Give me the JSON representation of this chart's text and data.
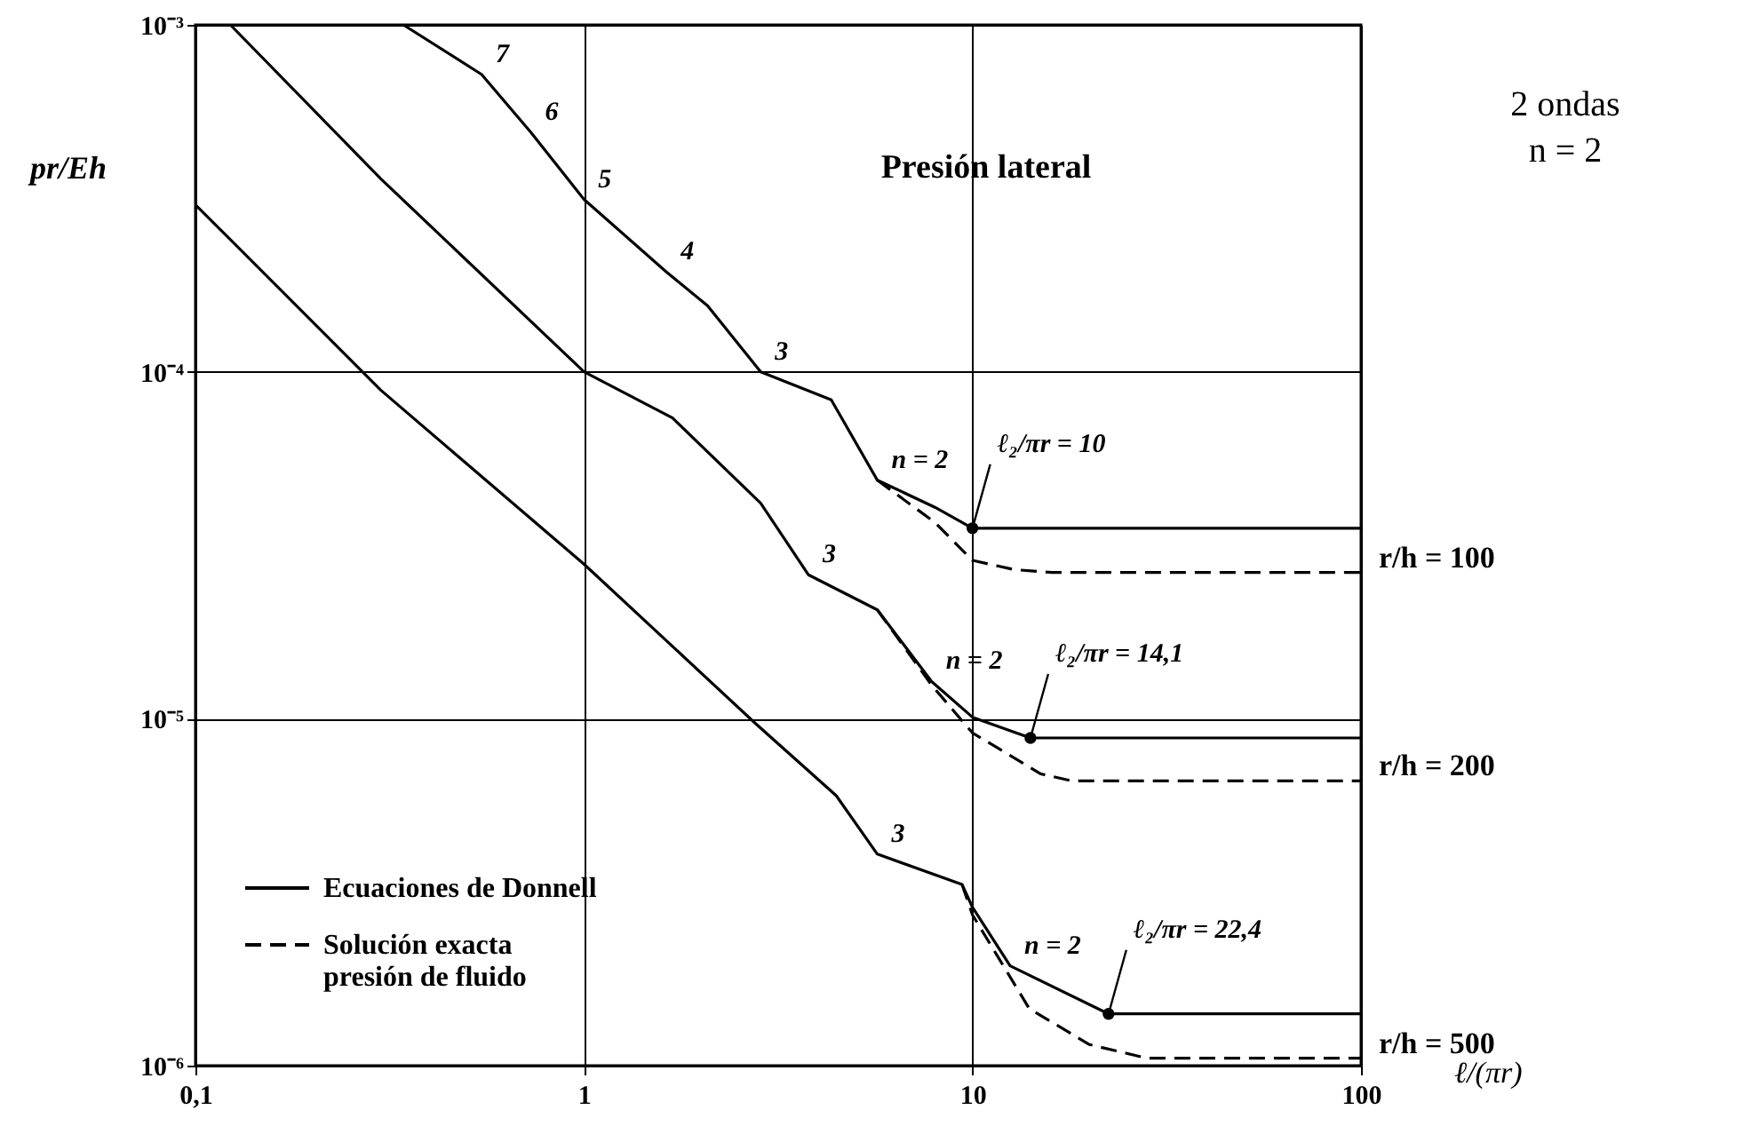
{
  "chart_data": {
    "type": "line",
    "title": "Presión lateral",
    "xlabel": "ℓ/(πr)",
    "ylabel": "pr/Eh",
    "log": "xy",
    "grid": true,
    "legend": "bottom left",
    "xlim": [
      0.1,
      100
    ],
    "xticks": [
      {
        "value": 0.1,
        "label": "0,1"
      },
      1,
      10,
      100
    ],
    "ylim": [
      1e-06,
      0.001
    ],
    "yticks": [
      {
        "value": 1e-06,
        "label": "10⁻⁶"
      },
      {
        "value": 1e-05,
        "label": "10⁻⁵"
      },
      {
        "value": 0.0001,
        "label": "10⁻⁴"
      },
      {
        "value": 0.001,
        "label": "10⁻³"
      }
    ],
    "series": [
      {
        "name": "Ecuaciones de Donnell",
        "color": "#000000",
        "line_style": "solid",
        "x": [
          0.343,
          0.545,
          0.73,
          1,
          1.63,
          2.08,
          2.85,
          4.33,
          5.69,
          8.0,
          10,
          100
        ],
        "values": [
          0.001,
          0.00072,
          0.00049,
          0.000314,
          0.000194,
          0.000155,
          0.0001,
          8.3e-05,
          4.87e-05,
          4.07e-05,
          3.54e-05,
          3.54e-05
        ]
      },
      {
        "name": "Solución exacta\npresión de fluido",
        "color": "#000000",
        "line_style": "dashed",
        "x": [
          5.69,
          8.0,
          10,
          12.8,
          16,
          100
        ],
        "values": [
          4.87e-05,
          3.68e-05,
          2.86e-05,
          2.69e-05,
          2.64e-05,
          2.64e-05
        ]
      },
      {
        "color": "#000000",
        "line_style": "solid",
        "x": [
          0.123,
          0.3,
          1,
          1.69,
          2.85,
          3.78,
          5.69,
          7.85,
          10,
          14.1,
          100
        ],
        "values": [
          0.001,
          0.00036,
          0.0001,
          7.36e-05,
          4.18e-05,
          2.6e-05,
          2.06e-05,
          1.28e-05,
          1.01e-05,
          8.8e-06,
          8.8e-06
        ]
      },
      {
        "color": "#000000",
        "line_style": "dashed",
        "x": [
          5.69,
          7.85,
          10,
          15,
          18,
          100
        ],
        "values": [
          2.06e-05,
          1.25e-05,
          9.1e-06,
          6.93e-06,
          6.62e-06,
          6.62e-06
        ]
      },
      {
        "color": "#000000",
        "line_style": "solid",
        "x": [
          0.1,
          0.3,
          1,
          2.76,
          4.46,
          5.69,
          9.4,
          10,
          12.5,
          22.4,
          100
        ],
        "values": [
          0.000303,
          8.85e-05,
          2.79e-05,
          9.7e-06,
          6e-06,
          4.07e-06,
          3.33e-06,
          2.86e-06,
          1.94e-06,
          1.41e-06,
          1.41e-06
        ]
      },
      {
        "color": "#000000",
        "line_style": "dashed",
        "x": [
          9.4,
          10,
          14,
          20,
          28.2,
          100
        ],
        "values": [
          3.33e-06,
          2.72e-06,
          1.46e-06,
          1.15e-06,
          1.05e-06,
          1.05e-06
        ]
      },
      {
        "type": "scatter",
        "marker": "circle",
        "color": "#000000",
        "x": [
          10,
          14.1,
          22.4
        ],
        "values": [
          3.54e-05,
          8.8e-06,
          1.41e-06
        ]
      }
    ],
    "annotations": [
      {
        "text": "7",
        "x": 0.545,
        "y": 0.00072
      },
      {
        "text": "6",
        "x": 0.73,
        "y": 0.00049
      },
      {
        "text": "5",
        "x": 1,
        "y": 0.000314
      },
      {
        "text": "4",
        "x": 1.63,
        "y": 0.000194
      },
      {
        "text": "3",
        "x": 2.85,
        "y": 0.0001
      },
      {
        "text": "3",
        "x": 3.78,
        "y": 2.6e-05
      },
      {
        "text": "3",
        "x": 5.69,
        "y": 4.07e-06
      },
      {
        "text": "n = 2",
        "x": 5.69,
        "y": 4.87e-05
      },
      {
        "text": "n = 2",
        "x": 7.85,
        "y": 1.28e-05
      },
      {
        "text": "n = 2",
        "x": 12.5,
        "y": 1.94e-06
      },
      {
        "text": "ℓ₂/πr = 10",
        "x": 10,
        "y": 3.54e-05
      },
      {
        "text": "ℓ₂/πr = 14,1",
        "x": 14.1,
        "y": 8.8e-06
      },
      {
        "text": "ℓ₂/πr = 22,4",
        "x": 22.4,
        "y": 1.41e-06
      },
      {
        "text": "r/h = 100",
        "x": 100,
        "y": 2.64e-05
      },
      {
        "text": "r/h = 200",
        "x": 100,
        "y": 6.62e-06
      },
      {
        "text": "r/h = 500",
        "x": 100,
        "y": 1.05e-06
      },
      "2 ondas\nn = 2"
    ]
  }
}
